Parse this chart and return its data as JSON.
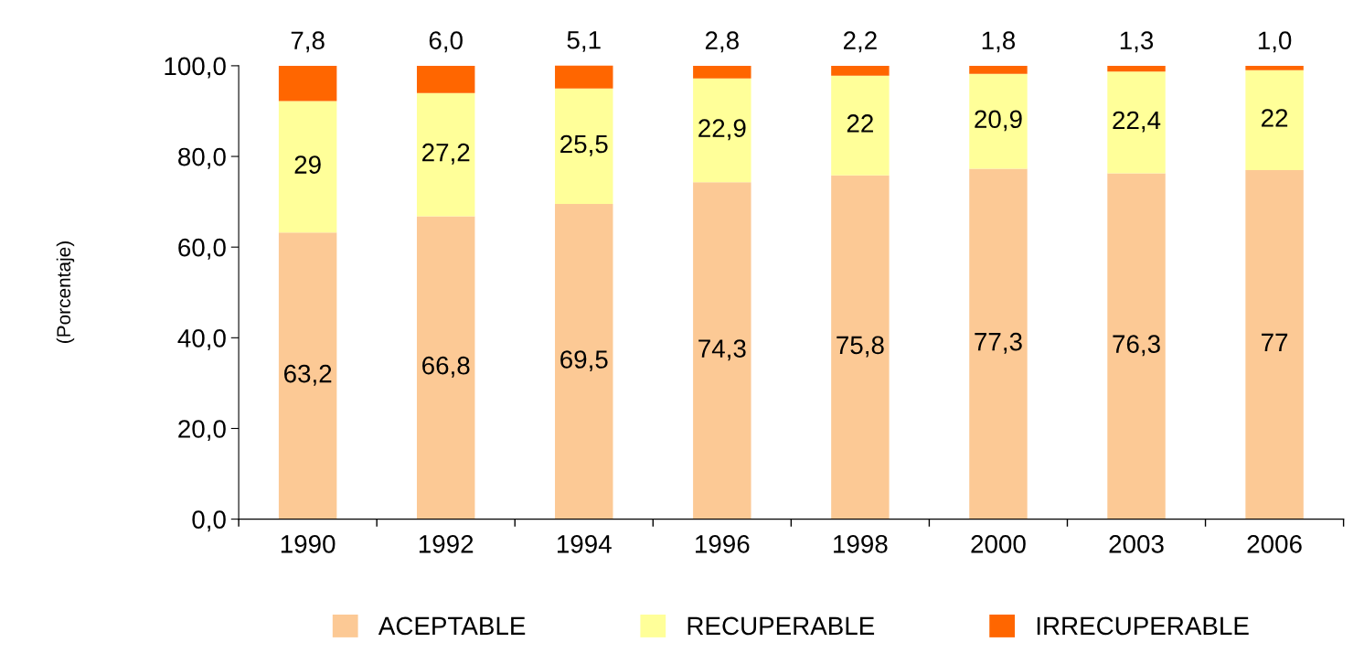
{
  "chart_data": {
    "type": "bar",
    "stacked": true,
    "ylabel": "(Porcentaje)",
    "categories": [
      "1990",
      "1992",
      "1994",
      "1996",
      "1998",
      "2000",
      "2003",
      "2006"
    ],
    "series": [
      {
        "name": "ACEPTABLE",
        "color": "#fcc995",
        "values": [
          63.2,
          66.8,
          69.5,
          74.3,
          75.8,
          77.3,
          76.3,
          77
        ],
        "value_labels": [
          "63,2",
          "66,8",
          "69,5",
          "74,3",
          "75,8",
          "77,3",
          "76,3",
          "77"
        ]
      },
      {
        "name": "RECUPERABLE",
        "color": "#ffff99",
        "values": [
          29,
          27.2,
          25.5,
          22.9,
          22,
          20.9,
          22.4,
          22
        ],
        "value_labels": [
          "29",
          "27,2",
          "25,5",
          "22,9",
          "22",
          "20,9",
          "22,4",
          "22"
        ]
      },
      {
        "name": "IRRECUPERABLE",
        "color": "#ff6600",
        "values": [
          7.8,
          6.0,
          5.1,
          2.8,
          2.2,
          1.8,
          1.3,
          1.0
        ],
        "value_labels": [
          "7,8",
          "6,0",
          "5,1",
          "2,8",
          "2,2",
          "1,8",
          "1,3",
          "1,0"
        ]
      }
    ],
    "ylim": [
      0,
      100.1
    ],
    "yticks": [
      {
        "value": 0,
        "label": "0,0"
      },
      {
        "value": 20,
        "label": "20,0"
      },
      {
        "value": 40,
        "label": "40,0"
      },
      {
        "value": 60,
        "label": "60,0"
      },
      {
        "value": 80,
        "label": "80,0"
      },
      {
        "value": 100,
        "label": "100,0"
      }
    ],
    "grid": false,
    "legend": "bottom"
  }
}
